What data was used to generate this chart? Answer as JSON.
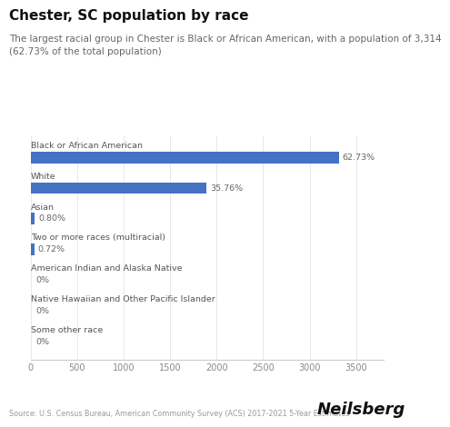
{
  "title": "Chester, SC population by race",
  "subtitle": "The largest racial group in Chester is Black or African American, with a population of 3,314\n(62.73% of the total population)",
  "categories": [
    "Black or African American",
    "White",
    "Asian",
    "Two or more races (multiracial)",
    "American Indian and Alaska Native",
    "Native Hawaiian and Other Pacific Islander",
    "Some other race"
  ],
  "values": [
    3314,
    1889,
    42,
    38,
    0,
    0,
    0
  ],
  "labels": [
    "62.73%",
    "35.76%",
    "0.80%",
    "0.72%",
    "0%",
    "0%",
    "0%"
  ],
  "bar_color": "#4472C4",
  "xlim": [
    0,
    3800
  ],
  "xticks": [
    0,
    500,
    1000,
    1500,
    2000,
    2500,
    3000,
    3500
  ],
  "source": "Source: U.S. Census Bureau, American Community Survey (ACS) 2017-2021 5-Year Estimates",
  "brand": "Neilsberg",
  "background_color": "#ffffff",
  "title_fontsize": 11,
  "subtitle_fontsize": 7.5,
  "category_fontsize": 6.8,
  "label_fontsize": 6.8,
  "tick_fontsize": 7,
  "source_fontsize": 5.8,
  "brand_fontsize": 13
}
